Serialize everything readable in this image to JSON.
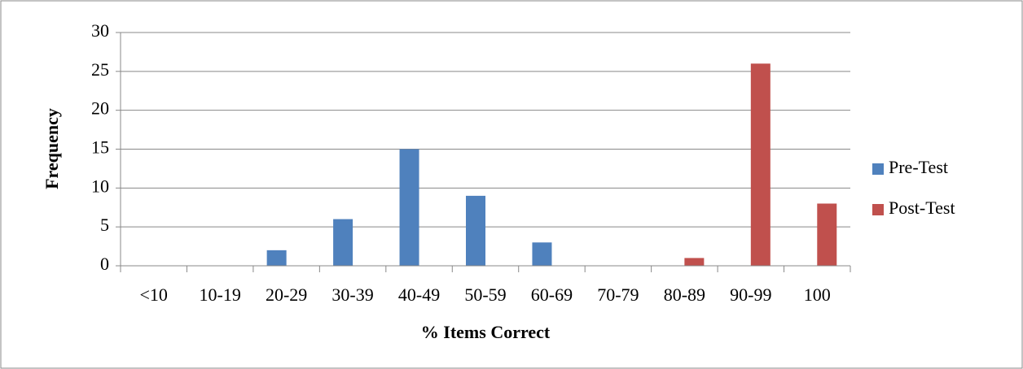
{
  "chart_data": {
    "type": "bar",
    "x_label": "% Items Correct",
    "y_label": "Frequency",
    "categories": [
      "<10",
      "10-19",
      "20-29",
      "30-39",
      "40-49",
      "50-59",
      "60-69",
      "70-79",
      "80-89",
      "90-99",
      "100"
    ],
    "series": [
      {
        "name": "Pre-Test",
        "color": "#4f81bd",
        "values": [
          0,
          0,
          2,
          6,
          15,
          9,
          3,
          0,
          0,
          0,
          0
        ]
      },
      {
        "name": "Post-Test",
        "color": "#c0504d",
        "values": [
          0,
          0,
          0,
          0,
          0,
          0,
          0,
          0,
          1,
          26,
          8
        ]
      }
    ],
    "ylim": [
      0,
      30
    ],
    "yticks": [
      0,
      5,
      10,
      15,
      20,
      25,
      30
    ],
    "grid": true,
    "legend": "right"
  }
}
